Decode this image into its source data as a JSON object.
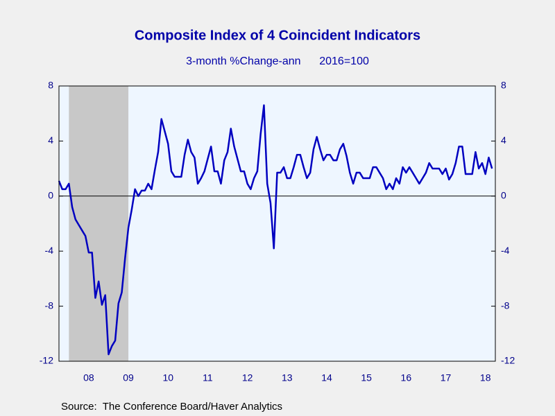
{
  "chart_data": {
    "type": "line",
    "title": "Composite Index of 4 Coincident Indicators",
    "subtitle": "3-month %Change-ann      2016=100",
    "source": "Source:  The Conference Board/Haver Analytics",
    "xlim": [
      2007.75,
      2018.75
    ],
    "xticks": [
      {
        "value": 2008.5,
        "label": "08"
      },
      {
        "value": 2009.5,
        "label": "09"
      },
      {
        "value": 2010.5,
        "label": "10"
      },
      {
        "value": 2011.5,
        "label": "11"
      },
      {
        "value": 2012.5,
        "label": "12"
      },
      {
        "value": 2013.5,
        "label": "13"
      },
      {
        "value": 2014.5,
        "label": "14"
      },
      {
        "value": 2015.5,
        "label": "15"
      },
      {
        "value": 2016.5,
        "label": "16"
      },
      {
        "value": 2017.5,
        "label": "17"
      },
      {
        "value": 2018.5,
        "label": "18"
      }
    ],
    "ylim": [
      -12,
      8
    ],
    "yticks": [
      8,
      4,
      0,
      -4,
      -8,
      -12
    ],
    "y2lim": [
      -12,
      8
    ],
    "y2ticks": [
      8,
      4,
      0,
      -4,
      -8,
      -12
    ],
    "shading": [
      [
        2008,
        2009.5
      ]
    ],
    "shading_color": "#c8c8c8",
    "plot_color": "#eef6ff",
    "x": [
      2007.75,
      2007.833,
      2007.917,
      2008,
      2008.083,
      2008.167,
      2008.25,
      2008.333,
      2008.417,
      2008.5,
      2008.583,
      2008.667,
      2008.75,
      2008.833,
      2008.917,
      2009,
      2009.083,
      2009.167,
      2009.25,
      2009.333,
      2009.417,
      2009.5,
      2009.583,
      2009.667,
      2009.75,
      2009.833,
      2009.917,
      2010,
      2010.083,
      2010.167,
      2010.25,
      2010.333,
      2010.417,
      2010.5,
      2010.583,
      2010.667,
      2010.75,
      2010.833,
      2010.917,
      2011,
      2011.083,
      2011.167,
      2011.25,
      2011.333,
      2011.417,
      2011.5,
      2011.583,
      2011.667,
      2011.75,
      2011.833,
      2011.917,
      2012,
      2012.083,
      2012.167,
      2012.25,
      2012.333,
      2012.417,
      2012.5,
      2012.583,
      2012.667,
      2012.75,
      2012.833,
      2012.917,
      2013,
      2013.083,
      2013.167,
      2013.25,
      2013.333,
      2013.417,
      2013.5,
      2013.583,
      2013.667,
      2013.75,
      2013.833,
      2013.917,
      2014,
      2014.083,
      2014.167,
      2014.25,
      2014.333,
      2014.417,
      2014.5,
      2014.583,
      2014.667,
      2014.75,
      2014.833,
      2014.917,
      2015,
      2015.083,
      2015.167,
      2015.25,
      2015.333,
      2015.417,
      2015.5,
      2015.583,
      2015.667,
      2015.75,
      2015.833,
      2015.917,
      2016,
      2016.083,
      2016.167,
      2016.25,
      2016.333,
      2016.417,
      2016.5,
      2016.583,
      2016.667,
      2016.75,
      2016.833,
      2016.917,
      2017,
      2017.083,
      2017.167,
      2017.25,
      2017.333,
      2017.417,
      2017.5,
      2017.583,
      2017.667,
      2017.75,
      2017.833,
      2017.917,
      2018,
      2018.083,
      2018.167,
      2018.25,
      2018.333,
      2018.417,
      2018.5,
      2018.583,
      2018.667
    ],
    "series": [
      {
        "color": "#0000c0",
        "values": [
          1.1,
          0.5,
          0.5,
          0.9,
          -0.8,
          -1.7,
          -2.1,
          -2.5,
          -2.9,
          -4.1,
          -4.1,
          -7.4,
          -6.2,
          -7.9,
          -7.2,
          -11.5,
          -10.9,
          -10.5,
          -7.8,
          -7.0,
          -4.5,
          -2.3,
          -1.0,
          0.5,
          0.0,
          0.4,
          0.4,
          0.9,
          0.5,
          1.9,
          3.2,
          5.6,
          4.7,
          3.8,
          1.8,
          1.4,
          1.4,
          1.4,
          3.0,
          4.1,
          3.2,
          2.8,
          0.9,
          1.3,
          1.8,
          2.7,
          3.6,
          1.8,
          1.8,
          0.9,
          2.6,
          3.2,
          4.9,
          3.6,
          2.7,
          1.8,
          1.8,
          0.9,
          0.5,
          1.3,
          1.8,
          4.5,
          6.6,
          0.9,
          -0.5,
          -3.8,
          1.7,
          1.7,
          2.1,
          1.3,
          1.3,
          2.1,
          3.0,
          3.0,
          2.1,
          1.3,
          1.7,
          3.4,
          4.3,
          3.4,
          2.6,
          3.0,
          3.0,
          2.6,
          2.6,
          3.4,
          3.8,
          2.9,
          1.7,
          0.9,
          1.7,
          1.7,
          1.3,
          1.3,
          1.3,
          2.1,
          2.1,
          1.7,
          1.3,
          0.5,
          0.9,
          0.5,
          1.3,
          0.9,
          2.1,
          1.7,
          2.1,
          1.7,
          1.3,
          0.9,
          1.3,
          1.7,
          2.4,
          2.0,
          2.0,
          2.0,
          1.6,
          2.0,
          1.2,
          1.6,
          2.4,
          3.6,
          3.6,
          1.6,
          1.6,
          1.6,
          3.2,
          2.0,
          2.4,
          1.6,
          2.8,
          2.0
        ]
      }
    ]
  }
}
